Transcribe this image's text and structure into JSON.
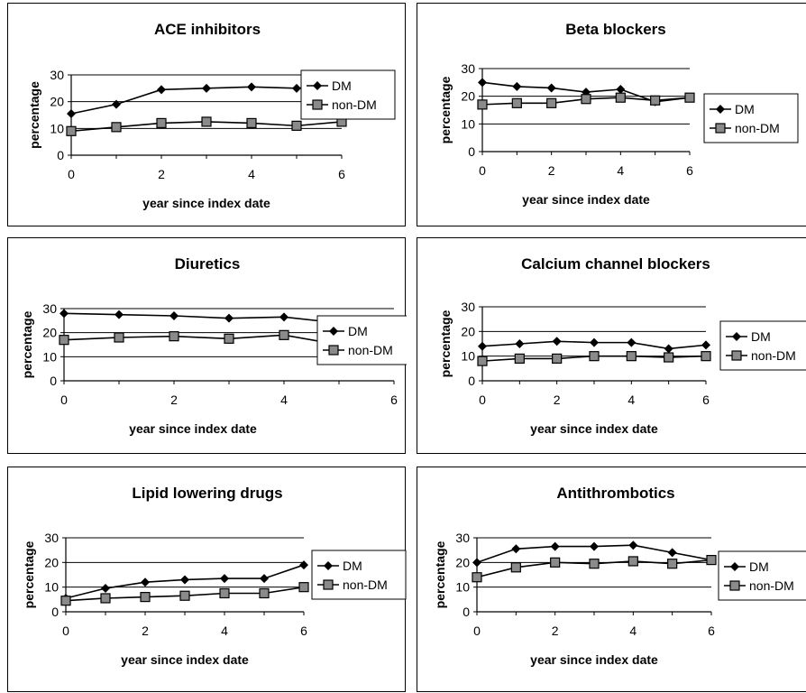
{
  "chart_data": [
    {
      "type": "line",
      "title": "ACE inhibitors",
      "xlabel": "year since index date",
      "ylabel": "percentage",
      "x": [
        0,
        1,
        2,
        3,
        4,
        5,
        6
      ],
      "xticks": [
        0,
        2,
        4,
        6
      ],
      "ylim": [
        0,
        30
      ],
      "yticks": [
        0,
        10,
        20,
        30
      ],
      "grid": true,
      "legend": "right",
      "series": [
        {
          "name": "DM",
          "marker": "diamond",
          "values": [
            15.5,
            19,
            24.5,
            25,
            25.5,
            25,
            26
          ]
        },
        {
          "name": "non-DM",
          "marker": "square",
          "values": [
            9,
            10.5,
            12,
            12.5,
            12,
            11,
            12.5
          ]
        }
      ]
    },
    {
      "type": "line",
      "title": "Beta blockers",
      "xlabel": "year since index date",
      "ylabel": "percentage",
      "x": [
        0,
        1,
        2,
        3,
        4,
        5,
        6
      ],
      "xticks": [
        0,
        2,
        4,
        6
      ],
      "ylim": [
        0,
        30
      ],
      "yticks": [
        0,
        10,
        20,
        30
      ],
      "grid": true,
      "legend": "right",
      "series": [
        {
          "name": "DM",
          "marker": "diamond",
          "values": [
            25,
            23.5,
            23,
            21.5,
            22.5,
            18,
            19.5
          ]
        },
        {
          "name": "non-DM",
          "marker": "square",
          "values": [
            17,
            17.5,
            17.5,
            19,
            19.5,
            18.5,
            19.5
          ]
        }
      ]
    },
    {
      "type": "line",
      "title": "Diuretics",
      "xlabel": "year since index date",
      "ylabel": "percentage",
      "x": [
        0,
        1,
        2,
        3,
        4,
        5,
        6
      ],
      "xticks": [
        0,
        2,
        4,
        6
      ],
      "ylim": [
        0,
        30
      ],
      "yticks": [
        0,
        10,
        20,
        30
      ],
      "grid": true,
      "legend": "right",
      "series": [
        {
          "name": "DM",
          "marker": "diamond",
          "values": [
            28,
            27.5,
            27,
            26,
            26.5,
            24,
            23.5
          ]
        },
        {
          "name": "non-DM",
          "marker": "square",
          "values": [
            17,
            18,
            18.5,
            17.5,
            19,
            15,
            17
          ]
        }
      ]
    },
    {
      "type": "line",
      "title": "Calcium channel blockers",
      "xlabel": "year since index date",
      "ylabel": "percentage",
      "x": [
        0,
        1,
        2,
        3,
        4,
        5,
        6
      ],
      "xticks": [
        0,
        2,
        4,
        6
      ],
      "ylim": [
        0,
        30
      ],
      "yticks": [
        0,
        10,
        20,
        30
      ],
      "grid": true,
      "legend": "right",
      "series": [
        {
          "name": "DM",
          "marker": "diamond",
          "values": [
            14,
            15,
            16,
            15.5,
            15.5,
            13,
            14.5
          ]
        },
        {
          "name": "non-DM",
          "marker": "square",
          "values": [
            8,
            9,
            9,
            10,
            10,
            9.5,
            10
          ]
        }
      ]
    },
    {
      "type": "line",
      "title": "Lipid lowering drugs",
      "xlabel": "year since index date",
      "ylabel": "percentage",
      "x": [
        0,
        1,
        2,
        3,
        4,
        5,
        6
      ],
      "xticks": [
        0,
        2,
        4,
        6
      ],
      "ylim": [
        0,
        30
      ],
      "yticks": [
        0,
        10,
        20,
        30
      ],
      "grid": true,
      "legend": "right",
      "series": [
        {
          "name": "DM",
          "marker": "diamond",
          "values": [
            5.5,
            9.5,
            12,
            13,
            13.5,
            13.5,
            19
          ]
        },
        {
          "name": "non-DM",
          "marker": "square",
          "values": [
            4.5,
            5.5,
            6,
            6.5,
            7.5,
            7.5,
            10
          ]
        }
      ]
    },
    {
      "type": "line",
      "title": "Antithrombotics",
      "xlabel": "year since index date",
      "ylabel": "percentage",
      "x": [
        0,
        1,
        2,
        3,
        4,
        5,
        6
      ],
      "xticks": [
        0,
        2,
        4,
        6
      ],
      "ylim": [
        0,
        30
      ],
      "yticks": [
        0,
        10,
        20,
        30
      ],
      "grid": true,
      "legend": "right",
      "series": [
        {
          "name": "DM",
          "marker": "diamond",
          "values": [
            20,
            25.5,
            26.5,
            26.5,
            27,
            24,
            21
          ]
        },
        {
          "name": "non-DM",
          "marker": "square",
          "values": [
            14,
            18,
            20,
            19.5,
            20.5,
            19.5,
            21
          ]
        }
      ]
    }
  ],
  "colors": {
    "line": "#000000",
    "grid": "#000000",
    "marker_square_fill": "#8a8a8a"
  }
}
